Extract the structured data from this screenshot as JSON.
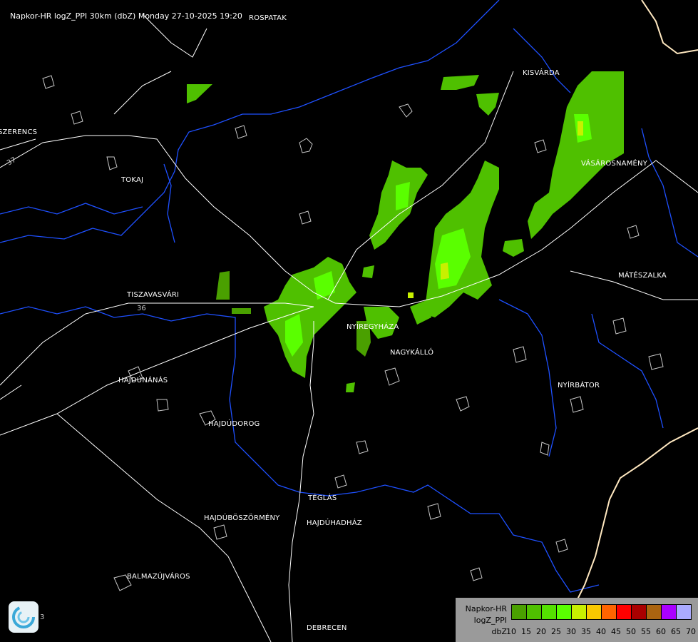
{
  "title": "Napkor-HR logZ_PPI 30km (dbZ) Monday 27-10-2025 19:20",
  "cities": [
    {
      "name": "ROSPATAK"
    },
    {
      "name": "KISVÁRDA"
    },
    {
      "name": "SZERENCS"
    },
    {
      "name": "TOKAJ"
    },
    {
      "name": "VÁSÁROSNAMÉNY"
    },
    {
      "name": "MÁTÉSZALKA"
    },
    {
      "name": "TISZAVASVÁRI"
    },
    {
      "name": "NYÍREGYHÁZA"
    },
    {
      "name": "NAGYKÁLLÓ"
    },
    {
      "name": "NYÍRBÁTOR"
    },
    {
      "name": "HAJDÚNÁNÁS"
    },
    {
      "name": "HAJDÚDOROG"
    },
    {
      "name": "TÉGLÁS"
    },
    {
      "name": "HAJDÚBÖSZÖRMÉNY"
    },
    {
      "name": "HAJDÚHADHÁZ"
    },
    {
      "name": "BALMAZÚJVÁROS"
    },
    {
      "name": "DEBRECEN"
    }
  ],
  "road_numbers": [
    "37",
    "36",
    "3"
  ],
  "legend": {
    "line1": "Napkor-HR",
    "line2": "logZ_PPI",
    "unit": "dbZ",
    "ticks": [
      "10",
      "15",
      "20",
      "25",
      "30",
      "35",
      "40",
      "45",
      "50",
      "55",
      "60",
      "65",
      "70"
    ],
    "colors": [
      "#4aa000",
      "#4fc000",
      "#54e000",
      "#5aff00",
      "#c8f000",
      "#f8c800",
      "#ff6400",
      "#ff0000",
      "#aa0000",
      "#aa6410",
      "#aa00ff",
      "#aaaaff"
    ]
  },
  "colors": {
    "river": "#1e50ff",
    "road": "#ffffff",
    "border": "#ffe8c0",
    "settlement": "#c8c8c8"
  },
  "logo": "weather-service-logo"
}
